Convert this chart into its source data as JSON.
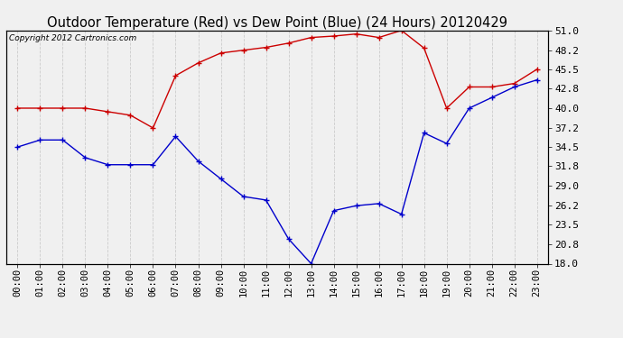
{
  "title": "Outdoor Temperature (Red) vs Dew Point (Blue) (24 Hours) 20120429",
  "copyright": "Copyright 2012 Cartronics.com",
  "hours": [
    "00:00",
    "01:00",
    "02:00",
    "03:00",
    "04:00",
    "05:00",
    "06:00",
    "07:00",
    "08:00",
    "09:00",
    "10:00",
    "11:00",
    "12:00",
    "13:00",
    "14:00",
    "15:00",
    "16:00",
    "17:00",
    "18:00",
    "19:00",
    "20:00",
    "21:00",
    "22:00",
    "23:00"
  ],
  "temp": [
    40.0,
    40.0,
    40.0,
    40.0,
    39.5,
    39.0,
    37.2,
    44.6,
    46.4,
    47.8,
    48.2,
    48.6,
    49.2,
    50.0,
    50.2,
    50.5,
    50.0,
    51.0,
    48.5,
    40.0,
    43.0,
    43.0,
    43.5,
    45.5
  ],
  "dew": [
    34.5,
    35.5,
    35.5,
    33.0,
    32.0,
    32.0,
    32.0,
    36.0,
    32.5,
    30.0,
    27.5,
    27.0,
    21.5,
    18.0,
    25.5,
    26.2,
    26.5,
    25.0,
    36.5,
    35.0,
    40.0,
    41.5,
    43.0,
    44.0
  ],
  "temp_color": "#cc0000",
  "dew_color": "#0000cc",
  "plot_bg": "#f0f0f0",
  "fig_bg": "#f0f0f0",
  "grid_color": "#cccccc",
  "border_color": "#000000",
  "ylim_min": 18.0,
  "ylim_max": 51.0,
  "yticks": [
    18.0,
    20.8,
    23.5,
    26.2,
    29.0,
    31.8,
    34.5,
    37.2,
    40.0,
    42.8,
    45.5,
    48.2,
    51.0
  ],
  "title_fontsize": 10.5,
  "copyright_fontsize": 6.5,
  "tick_fontsize": 7.5,
  "ytick_fontsize": 8
}
